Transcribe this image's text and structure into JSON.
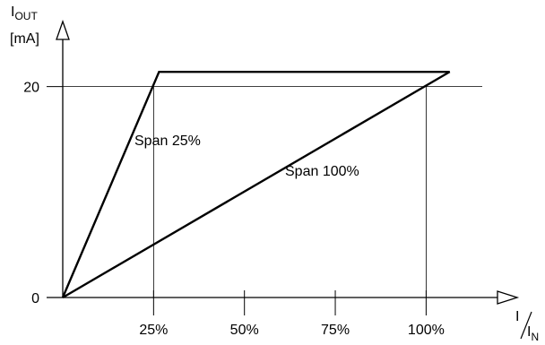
{
  "chart_data": {
    "type": "line",
    "x_axis_label": {
      "main": "I",
      "denominator": "I",
      "denominator_sub": "N"
    },
    "y_axis_label": {
      "main": "I",
      "sub": "OUT",
      "unit": "[mA]"
    },
    "x_ticks": [
      {
        "value": 25,
        "label": "25%"
      },
      {
        "value": 50,
        "label": "50%"
      },
      {
        "value": 75,
        "label": "75%"
      },
      {
        "value": 100,
        "label": "100%"
      }
    ],
    "y_ticks": [
      {
        "value": 0,
        "label": "0"
      },
      {
        "value": 20,
        "label": "20"
      }
    ],
    "xlim": [
      0,
      130
    ],
    "ylim": [
      0,
      26
    ],
    "reference_lines": [
      {
        "orientation": "horizontal",
        "value": 20
      },
      {
        "orientation": "vertical",
        "value": 25
      },
      {
        "orientation": "vertical",
        "value": 100
      }
    ],
    "series": [
      {
        "label": "Span 25%",
        "points": [
          {
            "x": 0,
            "y": 0
          },
          {
            "x": 26.5,
            "y": 21.4
          },
          {
            "x": 106.5,
            "y": 21.4
          }
        ]
      },
      {
        "label": "Span 100%",
        "points": [
          {
            "x": 0,
            "y": 0
          },
          {
            "x": 106.5,
            "y": 21.4
          }
        ]
      }
    ]
  }
}
